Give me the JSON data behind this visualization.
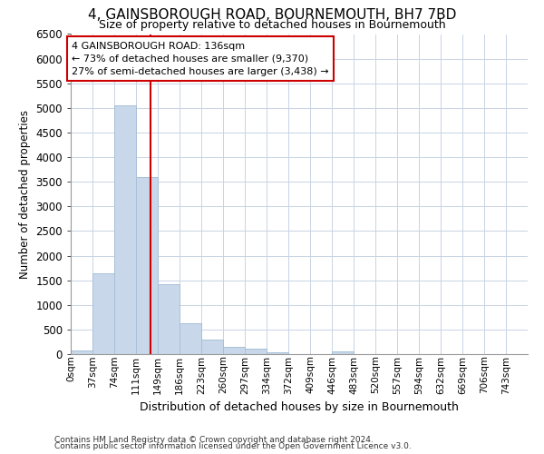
{
  "title_line1": "4, GAINSBOROUGH ROAD, BOURNEMOUTH, BH7 7BD",
  "title_line2": "Size of property relative to detached houses in Bournemouth",
  "xlabel": "Distribution of detached houses by size in Bournemouth",
  "ylabel": "Number of detached properties",
  "bar_color": "#c8d8ea",
  "bar_edge_color": "#a8c0d8",
  "categories": [
    "0sqm",
    "37sqm",
    "74sqm",
    "111sqm",
    "149sqm",
    "186sqm",
    "223sqm",
    "260sqm",
    "297sqm",
    "334sqm",
    "372sqm",
    "409sqm",
    "446sqm",
    "483sqm",
    "520sqm",
    "557sqm",
    "594sqm",
    "632sqm",
    "669sqm",
    "706sqm",
    "743sqm"
  ],
  "values": [
    70,
    1650,
    5060,
    3590,
    1420,
    620,
    295,
    150,
    110,
    30,
    5,
    5,
    60,
    0,
    0,
    0,
    0,
    0,
    0,
    0,
    0
  ],
  "ylim": [
    0,
    6500
  ],
  "yticks": [
    0,
    500,
    1000,
    1500,
    2000,
    2500,
    3000,
    3500,
    4000,
    4500,
    5000,
    5500,
    6000,
    6500
  ],
  "property_line_color": "#cc0000",
  "annotation_text_line1": "4 GAINSBOROUGH ROAD: 136sqm",
  "annotation_text_line2": "← 73% of detached houses are smaller (9,370)",
  "annotation_text_line3": "27% of semi-detached houses are larger (3,438) →",
  "annotation_box_color": "#cc0000",
  "annotation_fill": "#ffffff",
  "grid_color": "#c8d4e4",
  "footnote_line1": "Contains HM Land Registry data © Crown copyright and database right 2024.",
  "footnote_line2": "Contains public sector information licensed under the Open Government Licence v3.0.",
  "bin_width": 37
}
